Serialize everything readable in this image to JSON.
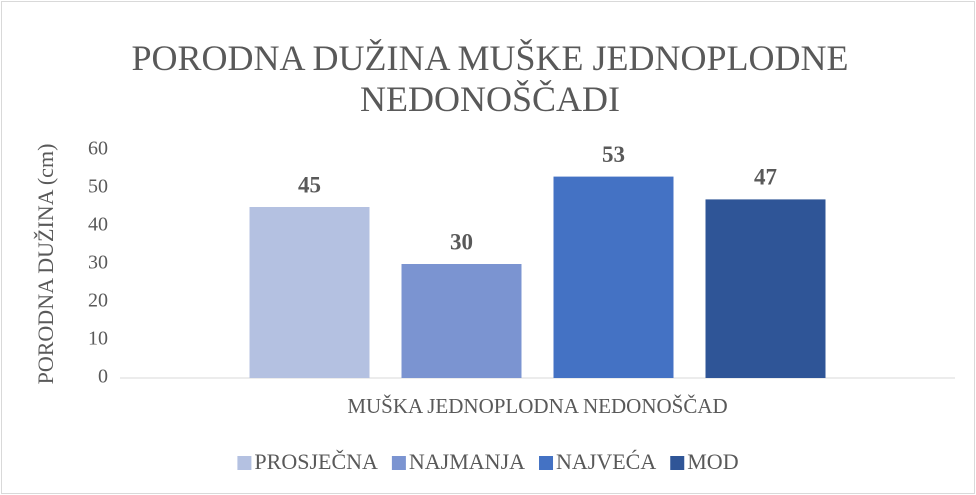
{
  "chart_data": {
    "type": "bar",
    "title": "PORODNA DUŽINA MUŠKE JEDNOPLODNE NEDONOŠČADI",
    "y_label": "PORODNA DUŽINA (cm)",
    "categories": [
      "MUŠKA JEDNOPLODNA NEDONOŠČAD"
    ],
    "series": [
      {
        "name": "PROSJEČNA",
        "color": "#b4c1e1",
        "values": [
          45
        ]
      },
      {
        "name": "NAJMANJA",
        "color": "#7b94d1",
        "values": [
          30
        ]
      },
      {
        "name": "NAJVEĆA",
        "color": "#4472c4",
        "values": [
          53
        ]
      },
      {
        "name": "MOD",
        "color": "#2f5597",
        "values": [
          47
        ]
      }
    ],
    "ylim": [
      0,
      60
    ],
    "yticks": [
      0,
      10,
      20,
      30,
      40,
      50,
      60
    ],
    "grid": false,
    "legend": "bottom"
  }
}
